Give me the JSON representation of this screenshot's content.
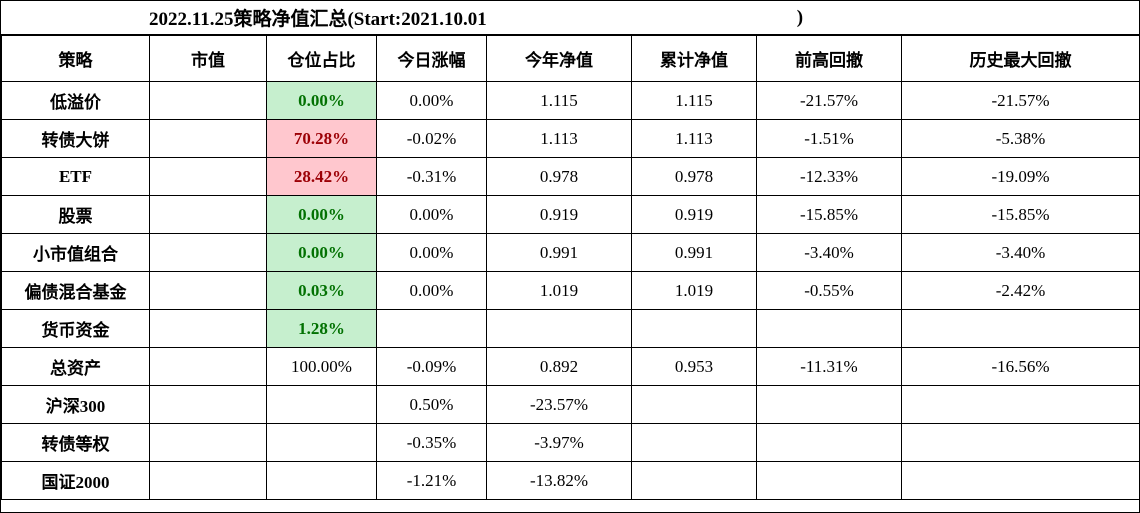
{
  "title": {
    "main": "2022.11.25策略净值汇总(Start:2021.10.01",
    "suffix": ")"
  },
  "table": {
    "columns": [
      "策略",
      "市值",
      "仓位占比",
      "今日涨幅",
      "今年净值",
      "累计净值",
      "前高回撤",
      "历史最大回撤"
    ],
    "rows": [
      {
        "strategy": "低溢价",
        "market_value": "",
        "position": "0.00%",
        "position_style": "green",
        "today_change": "0.00%",
        "ytd_net": "1.115",
        "cumulative_net": "1.115",
        "prev_high_drawdown": "-21.57%",
        "max_drawdown": "-21.57%"
      },
      {
        "strategy": "转债大饼",
        "market_value": "",
        "position": "70.28%",
        "position_style": "red",
        "today_change": "-0.02%",
        "ytd_net": "1.113",
        "cumulative_net": "1.113",
        "prev_high_drawdown": "-1.51%",
        "max_drawdown": "-5.38%"
      },
      {
        "strategy": "ETF",
        "market_value": "",
        "position": "28.42%",
        "position_style": "red",
        "today_change": "-0.31%",
        "ytd_net": "0.978",
        "cumulative_net": "0.978",
        "prev_high_drawdown": "-12.33%",
        "max_drawdown": "-19.09%"
      },
      {
        "strategy": "股票",
        "market_value": "",
        "position": "0.00%",
        "position_style": "green",
        "today_change": "0.00%",
        "ytd_net": "0.919",
        "cumulative_net": "0.919",
        "prev_high_drawdown": "-15.85%",
        "max_drawdown": "-15.85%"
      },
      {
        "strategy": "小市值组合",
        "market_value": "",
        "position": "0.00%",
        "position_style": "green",
        "today_change": "0.00%",
        "ytd_net": "0.991",
        "cumulative_net": "0.991",
        "prev_high_drawdown": "-3.40%",
        "max_drawdown": "-3.40%"
      },
      {
        "strategy": "偏债混合基金",
        "market_value": "",
        "position": "0.03%",
        "position_style": "green",
        "today_change": "0.00%",
        "ytd_net": "1.019",
        "cumulative_net": "1.019",
        "prev_high_drawdown": "-0.55%",
        "max_drawdown": "-2.42%"
      },
      {
        "strategy": "货币资金",
        "market_value": "",
        "position": "1.28%",
        "position_style": "green",
        "today_change": "",
        "ytd_net": "",
        "cumulative_net": "",
        "prev_high_drawdown": "",
        "max_drawdown": ""
      },
      {
        "strategy": "总资产",
        "market_value": "",
        "position": "100.00%",
        "position_style": "none",
        "today_change": "-0.09%",
        "ytd_net": "0.892",
        "cumulative_net": "0.953",
        "prev_high_drawdown": "-11.31%",
        "max_drawdown": "-16.56%"
      },
      {
        "strategy": "沪深300",
        "market_value": "",
        "position": "",
        "position_style": "none",
        "today_change": "0.50%",
        "ytd_net": "-23.57%",
        "cumulative_net": "",
        "prev_high_drawdown": "",
        "max_drawdown": ""
      },
      {
        "strategy": "转债等权",
        "market_value": "",
        "position": "",
        "position_style": "none",
        "today_change": "-0.35%",
        "ytd_net": "-3.97%",
        "cumulative_net": "",
        "prev_high_drawdown": "",
        "max_drawdown": ""
      },
      {
        "strategy": "国证2000",
        "market_value": "",
        "position": "",
        "position_style": "none",
        "today_change": "-1.21%",
        "ytd_net": "-13.82%",
        "cumulative_net": "",
        "prev_high_drawdown": "",
        "max_drawdown": ""
      }
    ]
  },
  "colors": {
    "position_low_bg": "#c6efce",
    "position_low_text": "#027102",
    "position_high_bg": "#ffc7ce",
    "position_high_text": "#9c0006",
    "border": "#000000",
    "background": "#ffffff"
  },
  "chart_data": {
    "type": "table",
    "title": "2022.11.25策略净值汇总(Start:2021.10.01 )",
    "columns": [
      "策略",
      "市值",
      "仓位占比",
      "今日涨幅",
      "今年净值",
      "累计净值",
      "前高回撤",
      "历史最大回撤"
    ],
    "rows": [
      [
        "低溢价",
        "",
        "0.00%",
        "0.00%",
        "1.115",
        "1.115",
        "-21.57%",
        "-21.57%"
      ],
      [
        "转债大饼",
        "",
        "70.28%",
        "-0.02%",
        "1.113",
        "1.113",
        "-1.51%",
        "-5.38%"
      ],
      [
        "ETF",
        "",
        "28.42%",
        "-0.31%",
        "0.978",
        "0.978",
        "-12.33%",
        "-19.09%"
      ],
      [
        "股票",
        "",
        "0.00%",
        "0.00%",
        "0.919",
        "0.919",
        "-15.85%",
        "-15.85%"
      ],
      [
        "小市值组合",
        "",
        "0.00%",
        "0.00%",
        "0.991",
        "0.991",
        "-3.40%",
        "-3.40%"
      ],
      [
        "偏债混合基金",
        "",
        "0.03%",
        "0.00%",
        "1.019",
        "1.019",
        "-0.55%",
        "-2.42%"
      ],
      [
        "货币资金",
        "",
        "1.28%",
        "",
        "",
        "",
        "",
        ""
      ],
      [
        "总资产",
        "",
        "100.00%",
        "-0.09%",
        "0.892",
        "0.953",
        "-11.31%",
        "-16.56%"
      ],
      [
        "沪深300",
        "",
        "",
        "0.50%",
        "-23.57%",
        "",
        "",
        ""
      ],
      [
        "转债等权",
        "",
        "",
        "-0.35%",
        "-3.97%",
        "",
        "",
        ""
      ],
      [
        "国证2000",
        "",
        "",
        "-1.21%",
        "-13.82%",
        "",
        "",
        ""
      ]
    ],
    "layout_hints": {
      "highlight_green_rows_position": [
        "低溢价",
        "股票",
        "小市值组合",
        "偏债混合基金",
        "货币资金"
      ],
      "highlight_red_rows_position": [
        "转债大饼",
        "ETF"
      ],
      "grid": true
    }
  }
}
